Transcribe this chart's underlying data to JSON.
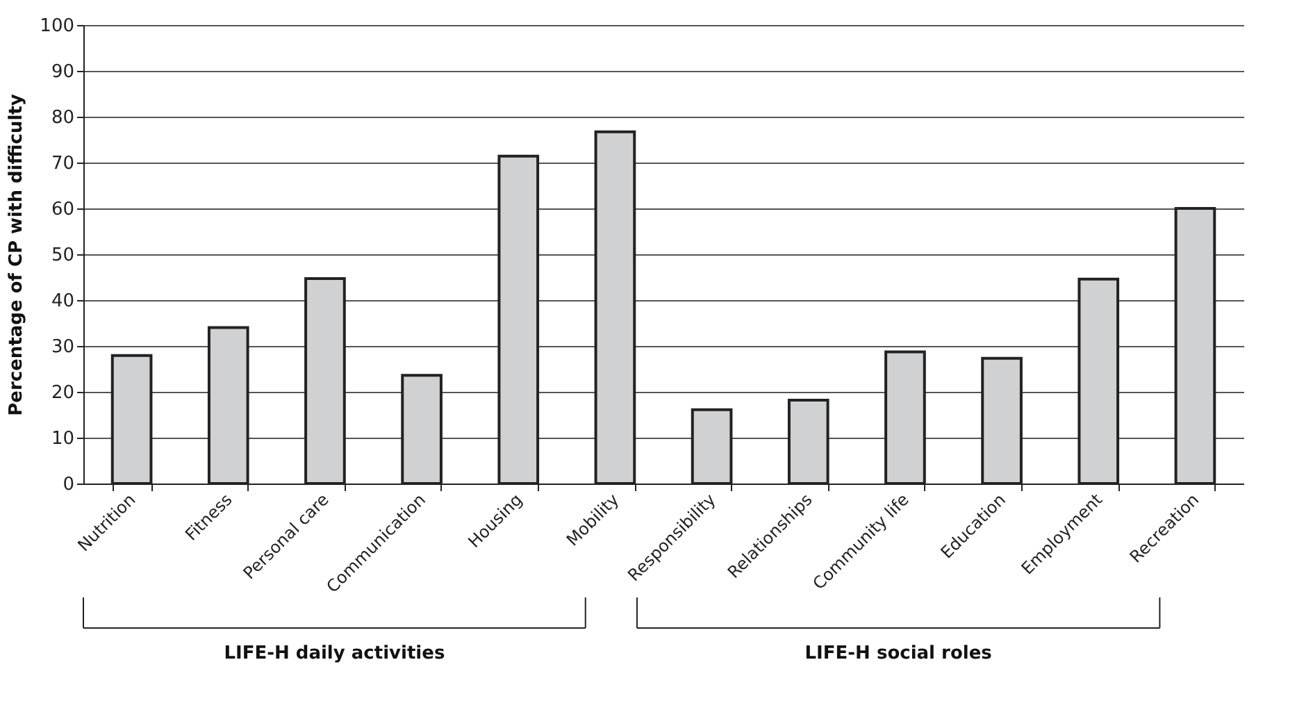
{
  "chart_data": {
    "type": "bar",
    "ylabel": "Percentage of CP with difficulty",
    "categories": [
      "Nutrition",
      "Fitness",
      "Personal care",
      "Communication",
      "Housing",
      "Mobility",
      "Responsibility",
      "Relationships",
      "Community life",
      "Education",
      "Employment",
      "Recreation"
    ],
    "values": [
      27.9,
      34.0,
      44.7,
      23.6,
      71.4,
      76.7,
      16.1,
      18.2,
      28.7,
      27.3,
      44.6,
      60.0
    ],
    "color": "#d0d1d3",
    "ylim": [
      0,
      100
    ],
    "yticks": [
      0,
      10,
      20,
      30,
      40,
      50,
      60,
      70,
      80,
      90,
      100
    ],
    "grid": "y",
    "annotations": [
      "LIFE-H daily activities",
      "LIFE-H social roles"
    ]
  }
}
